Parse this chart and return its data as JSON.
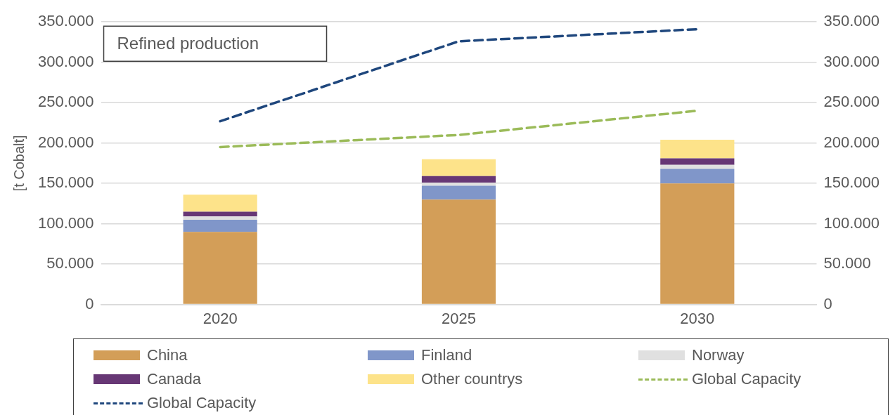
{
  "chart_data": {
    "type": "bar",
    "title": "Refined production",
    "ylabel": "[t Cobalt]",
    "categories": [
      "2020",
      "2025",
      "2030"
    ],
    "stacked": true,
    "series": [
      {
        "name": "China",
        "color": "#d39e58",
        "values": [
          90000,
          130000,
          150000
        ]
      },
      {
        "name": "Finland",
        "color": "#8096c9",
        "values": [
          15000,
          17000,
          18000
        ]
      },
      {
        "name": "Norway",
        "color": "#e0e0e0",
        "values": [
          4000,
          4000,
          5000
        ]
      },
      {
        "name": "Canada",
        "color": "#673775",
        "values": [
          6000,
          8000,
          8000
        ]
      },
      {
        "name": "Other countrys",
        "color": "#fde38a",
        "values": [
          21000,
          21000,
          23000
        ]
      },
      {
        "name": "Global Capacity",
        "type": "line",
        "line_style": "dashed",
        "color": "#9bbb59",
        "values": [
          195000,
          210000,
          240000
        ]
      },
      {
        "name": "Global Capacity",
        "type": "line",
        "line_style": "dashed",
        "color": "#1f477d",
        "values": [
          227000,
          326000,
          341000
        ]
      }
    ],
    "ylim": [
      0,
      350000
    ],
    "yticks": [
      {
        "value": 0,
        "label": "0"
      },
      {
        "value": 50000,
        "label": "50.000"
      },
      {
        "value": 100000,
        "label": "100.000"
      },
      {
        "value": 150000,
        "label": "150.000"
      },
      {
        "value": 200000,
        "label": "200.000"
      },
      {
        "value": 250000,
        "label": "250.000"
      },
      {
        "value": 300000,
        "label": "300.000"
      },
      {
        "value": 350000,
        "label": "350.000"
      }
    ],
    "y2lim": [
      0,
      350000
    ],
    "y2ticks": [
      {
        "value": 0,
        "label": "0"
      },
      {
        "value": 50000,
        "label": "50.000"
      },
      {
        "value": 100000,
        "label": "100.000"
      },
      {
        "value": 150000,
        "label": "150.000"
      },
      {
        "value": 200000,
        "label": "200.000"
      },
      {
        "value": 250000,
        "label": "250.000"
      },
      {
        "value": 300000,
        "label": "300.000"
      },
      {
        "value": 350000,
        "label": "350.000"
      }
    ],
    "grid": "y",
    "legend": "bottom",
    "marker": "none"
  }
}
